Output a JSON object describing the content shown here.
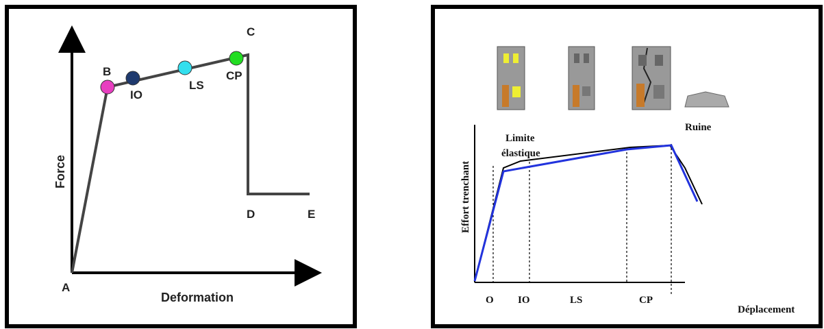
{
  "left": {
    "y_label": "Force",
    "x_label": "Deformation",
    "points": {
      "A": "A",
      "B": "B",
      "C": "C",
      "D": "D",
      "E": "E"
    },
    "levels": [
      "IO",
      "LS",
      "CP"
    ]
  },
  "right": {
    "y_label": "Effort trenchant",
    "x_label": "Déplacement",
    "elastic_limit": [
      "Limite",
      "élastique"
    ],
    "ruin": "Ruine",
    "levels": [
      "O",
      "IO",
      "LS",
      "CP"
    ]
  }
}
